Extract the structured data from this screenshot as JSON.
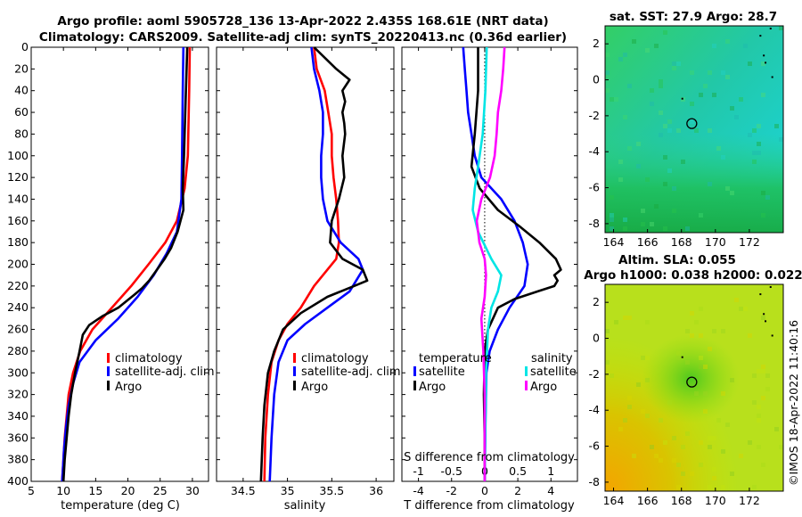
{
  "header": {
    "line1": "Argo profile: aoml 5905728_136 13-Apr-2022 2.435S 168.61E (NRT data)",
    "line2": "Climatology: CARS2009. Satellite-adj clim: synTS_20220413.nc (0.36d earlier)"
  },
  "colors": {
    "climatology": "#ff0000",
    "satellite": "#0000ff",
    "argo": "#000000",
    "sat_s": "#00e5e5",
    "argo_s": "#ff00ff"
  },
  "chart_data": [
    {
      "id": "temperature",
      "type": "line",
      "xlabel": "temperature (deg C)",
      "ylabel": "",
      "xlim": [
        5,
        32.5
      ],
      "ylim": [
        400,
        0
      ],
      "xticks": [
        5,
        10,
        15,
        20,
        25,
        30
      ],
      "yticks": [
        0,
        20,
        40,
        60,
        80,
        100,
        120,
        140,
        160,
        180,
        200,
        220,
        240,
        260,
        280,
        300,
        320,
        340,
        360,
        380,
        400
      ],
      "legend": [
        "climatology",
        "satellite-adj. clim",
        "Argo"
      ],
      "series": [
        {
          "name": "climatology",
          "color": "#ff0000",
          "points": [
            [
              29.6,
              0
            ],
            [
              29.5,
              40
            ],
            [
              29.3,
              100
            ],
            [
              28.8,
              130
            ],
            [
              27.6,
              160
            ],
            [
              25.8,
              180
            ],
            [
              23.2,
              200
            ],
            [
              20.5,
              220
            ],
            [
              17.5,
              240
            ],
            [
              14.5,
              260
            ],
            [
              12.6,
              280
            ],
            [
              11.5,
              300
            ],
            [
              10.8,
              320
            ],
            [
              10.5,
              340
            ],
            [
              10.2,
              360
            ],
            [
              10.0,
              380
            ],
            [
              9.8,
              400
            ]
          ]
        },
        {
          "name": "satellite-adj. clim",
          "color": "#0000ff",
          "points": [
            [
              28.6,
              0
            ],
            [
              28.5,
              40
            ],
            [
              28.4,
              100
            ],
            [
              28.3,
              140
            ],
            [
              27.6,
              170
            ],
            [
              26.0,
              190
            ],
            [
              24.0,
              210
            ],
            [
              21.5,
              230
            ],
            [
              18.5,
              250
            ],
            [
              15.0,
              270
            ],
            [
              12.5,
              290
            ],
            [
              11.5,
              310
            ],
            [
              10.8,
              330
            ],
            [
              10.4,
              350
            ],
            [
              10.1,
              370
            ],
            [
              9.9,
              390
            ],
            [
              9.8,
              400
            ]
          ]
        },
        {
          "name": "Argo",
          "color": "#000000",
          "points": [
            [
              29.2,
              0
            ],
            [
              29.1,
              20
            ],
            [
              28.9,
              60
            ],
            [
              28.7,
              100
            ],
            [
              28.5,
              130
            ],
            [
              28.6,
              150
            ],
            [
              27.7,
              170
            ],
            [
              26.7,
              185
            ],
            [
              25.7,
              195
            ],
            [
              24.5,
              205
            ],
            [
              23.3,
              215
            ],
            [
              22.2,
              222
            ],
            [
              21.0,
              228
            ],
            [
              18.5,
              240
            ],
            [
              16.0,
              248
            ],
            [
              14.0,
              256
            ],
            [
              13.0,
              265
            ],
            [
              12.5,
              280
            ],
            [
              11.8,
              300
            ],
            [
              11.2,
              320
            ],
            [
              10.8,
              340
            ],
            [
              10.5,
              360
            ],
            [
              10.2,
              380
            ],
            [
              10.0,
              400
            ]
          ]
        }
      ]
    },
    {
      "id": "salinity",
      "type": "line",
      "xlabel": "salinity",
      "ylabel": "",
      "xlim": [
        34.2,
        36.2
      ],
      "ylim": [
        400,
        0
      ],
      "xticks": [
        34.5,
        35,
        35.5,
        36
      ],
      "legend": [
        "climatology",
        "satellite-adj. clim",
        "Argo"
      ],
      "series": [
        {
          "name": "climatology",
          "color": "#ff0000",
          "points": [
            [
              35.3,
              0
            ],
            [
              35.33,
              20
            ],
            [
              35.42,
              40
            ],
            [
              35.46,
              60
            ],
            [
              35.5,
              80
            ],
            [
              35.5,
              100
            ],
            [
              35.52,
              120
            ],
            [
              35.55,
              140
            ],
            [
              35.57,
              160
            ],
            [
              35.58,
              180
            ],
            [
              35.55,
              195
            ],
            [
              35.45,
              205
            ],
            [
              35.3,
              220
            ],
            [
              35.15,
              240
            ],
            [
              35.0,
              255
            ],
            [
              34.9,
              270
            ],
            [
              34.82,
              290
            ],
            [
              34.78,
              320
            ],
            [
              34.75,
              360
            ],
            [
              34.74,
              400
            ]
          ]
        },
        {
          "name": "satellite-adj. clim",
          "color": "#0000ff",
          "points": [
            [
              35.27,
              0
            ],
            [
              35.3,
              20
            ],
            [
              35.36,
              40
            ],
            [
              35.4,
              60
            ],
            [
              35.4,
              80
            ],
            [
              35.38,
              100
            ],
            [
              35.38,
              120
            ],
            [
              35.4,
              140
            ],
            [
              35.45,
              160
            ],
            [
              35.6,
              180
            ],
            [
              35.8,
              195
            ],
            [
              35.85,
              205
            ],
            [
              35.7,
              225
            ],
            [
              35.45,
              240
            ],
            [
              35.2,
              255
            ],
            [
              35.0,
              270
            ],
            [
              34.9,
              290
            ],
            [
              34.85,
              320
            ],
            [
              34.82,
              360
            ],
            [
              34.8,
              400
            ]
          ]
        },
        {
          "name": "Argo",
          "color": "#000000",
          "points": [
            [
              35.3,
              0
            ],
            [
              35.55,
              20
            ],
            [
              35.7,
              30
            ],
            [
              35.62,
              40
            ],
            [
              35.65,
              50
            ],
            [
              35.62,
              60
            ],
            [
              35.64,
              70
            ],
            [
              35.65,
              80
            ],
            [
              35.62,
              100
            ],
            [
              35.64,
              120
            ],
            [
              35.58,
              140
            ],
            [
              35.5,
              160
            ],
            [
              35.48,
              180
            ],
            [
              35.62,
              195
            ],
            [
              35.85,
              205
            ],
            [
              35.9,
              215
            ],
            [
              35.75,
              220
            ],
            [
              35.45,
              230
            ],
            [
              35.15,
              245
            ],
            [
              34.95,
              260
            ],
            [
              34.85,
              280
            ],
            [
              34.78,
              300
            ],
            [
              34.74,
              330
            ],
            [
              34.72,
              360
            ],
            [
              34.7,
              400
            ]
          ]
        }
      ]
    },
    {
      "id": "differences",
      "type": "line",
      "xlabel": "T difference from climatology",
      "x2label": "S difference from climatology",
      "ylabel": "",
      "xlim": [
        -5,
        5.6
      ],
      "x2lim": [
        -1.25,
        1.4
      ],
      "ylim": [
        400,
        0
      ],
      "xticks": [
        -4,
        -2,
        0,
        2,
        4
      ],
      "x2ticks": [
        -1,
        -0.5,
        0,
        0.5,
        1
      ],
      "x2ticklabels": [
        "-1",
        "-0.5",
        "0",
        "0.5",
        "1"
      ],
      "legend_titles": [
        "temperature",
        "salinity"
      ],
      "legend": [
        "satellite",
        "Argo",
        "satellite",
        "Argo"
      ],
      "series": [
        {
          "name": "T satellite",
          "color": "#0000ff",
          "axis": "T",
          "points": [
            [
              -1.3,
              0
            ],
            [
              -1.2,
              20
            ],
            [
              -1.1,
              40
            ],
            [
              -1.0,
              60
            ],
            [
              -0.8,
              80
            ],
            [
              -0.6,
              100
            ],
            [
              -0.2,
              120
            ],
            [
              1.0,
              140
            ],
            [
              1.8,
              160
            ],
            [
              2.3,
              180
            ],
            [
              2.6,
              200
            ],
            [
              2.4,
              220
            ],
            [
              1.5,
              240
            ],
            [
              0.8,
              260
            ],
            [
              0.3,
              280
            ],
            [
              0.1,
              300
            ],
            [
              0.05,
              340
            ],
            [
              0.0,
              400
            ]
          ]
        },
        {
          "name": "T Argo",
          "color": "#000000",
          "axis": "T",
          "points": [
            [
              -0.4,
              0
            ],
            [
              -0.4,
              40
            ],
            [
              -0.6,
              80
            ],
            [
              -0.8,
              110
            ],
            [
              -0.3,
              130
            ],
            [
              0.8,
              150
            ],
            [
              2.1,
              165
            ],
            [
              3.3,
              180
            ],
            [
              4.3,
              195
            ],
            [
              4.6,
              205
            ],
            [
              4.2,
              210
            ],
            [
              4.4,
              215
            ],
            [
              4.2,
              220
            ],
            [
              3.2,
              225
            ],
            [
              1.8,
              232
            ],
            [
              0.8,
              240
            ],
            [
              0.5,
              250
            ],
            [
              0.2,
              260
            ],
            [
              0.0,
              280
            ],
            [
              -0.05,
              320
            ],
            [
              0.0,
              360
            ],
            [
              0.0,
              400
            ]
          ]
        },
        {
          "name": "S satellite",
          "color": "#00e5e5",
          "axis": "S",
          "points": [
            [
              0.03,
              0
            ],
            [
              0.01,
              40
            ],
            [
              -0.03,
              80
            ],
            [
              -0.1,
              110
            ],
            [
              -0.15,
              130
            ],
            [
              -0.18,
              150
            ],
            [
              -0.1,
              170
            ],
            [
              0.1,
              195
            ],
            [
              0.25,
              210
            ],
            [
              0.2,
              225
            ],
            [
              0.1,
              240
            ],
            [
              0.05,
              260
            ],
            [
              0.02,
              300
            ],
            [
              0.0,
              400
            ]
          ]
        },
        {
          "name": "S Argo",
          "color": "#ff00ff",
          "axis": "S",
          "points": [
            [
              0.3,
              0
            ],
            [
              0.28,
              20
            ],
            [
              0.25,
              40
            ],
            [
              0.2,
              60
            ],
            [
              0.18,
              80
            ],
            [
              0.15,
              100
            ],
            [
              0.08,
              120
            ],
            [
              -0.05,
              140
            ],
            [
              -0.12,
              160
            ],
            [
              -0.08,
              180
            ],
            [
              0.0,
              195
            ],
            [
              0.02,
              210
            ],
            [
              0.0,
              230
            ],
            [
              -0.05,
              250
            ],
            [
              -0.02,
              280
            ],
            [
              0.0,
              320
            ],
            [
              0.0,
              400
            ]
          ]
        }
      ]
    },
    {
      "id": "sst-map",
      "type": "heatmap",
      "title": "sat. SST: 27.9 Argo: 28.7",
      "xlim": [
        163.5,
        174
      ],
      "ylim": [
        -8.5,
        3
      ],
      "xticks": [
        164,
        166,
        168,
        170,
        172
      ],
      "yticks": [
        2,
        0,
        -2,
        -4,
        -6,
        -8
      ],
      "marker": [
        168.61,
        -2.435
      ]
    },
    {
      "id": "sla-map",
      "type": "heatmap",
      "title": "Altim. SLA: 0.055",
      "title2": "Argo h1000: 0.038 h2000: 0.022",
      "xlim": [
        163.5,
        174
      ],
      "ylim": [
        -8.5,
        3
      ],
      "xticks": [
        164,
        166,
        168,
        170,
        172
      ],
      "yticks": [
        2,
        0,
        -2,
        -4,
        -6,
        -8
      ],
      "marker": [
        168.61,
        -2.435
      ]
    }
  ],
  "footer": {
    "watermark": "©IMOS 18-Apr-2022 11:40:16"
  }
}
